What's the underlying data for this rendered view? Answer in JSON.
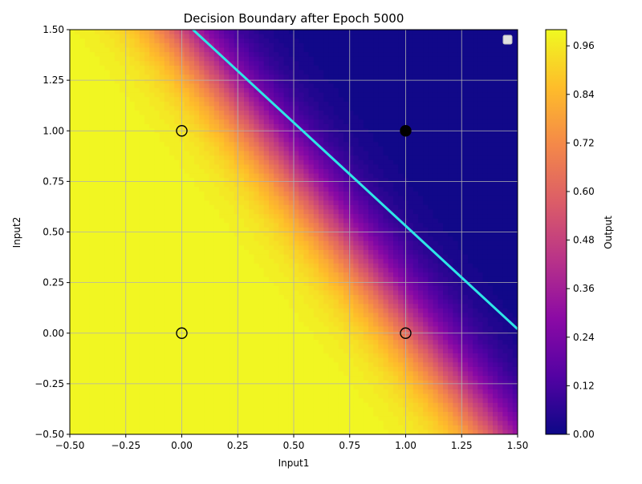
{
  "chart_data": {
    "type": "heatmap",
    "title": "Decision Boundary after Epoch 5000",
    "xlabel": "Input1",
    "ylabel": "Input2",
    "xlim": [
      -0.5,
      1.5
    ],
    "ylim": [
      -0.5,
      1.5
    ],
    "xticks": [
      -0.5,
      -0.25,
      0.0,
      0.25,
      0.5,
      0.75,
      1.0,
      1.25,
      1.5
    ],
    "yticks": [
      -0.5,
      -0.25,
      0.0,
      0.25,
      0.5,
      0.75,
      1.0,
      1.25,
      1.5
    ],
    "xtick_labels": [
      "−0.50",
      "−0.25",
      "0.00",
      "0.25",
      "0.50",
      "0.75",
      "1.00",
      "1.25",
      "1.50"
    ],
    "ytick_labels": [
      "−0.50",
      "−0.25",
      "0.00",
      "0.25",
      "0.50",
      "0.75",
      "1.00",
      "1.25",
      "1.50"
    ],
    "grid": true,
    "legend_position": "top-right",
    "colormap": "plasma",
    "colormap_stops": [
      "#0d0887",
      "#5302a3",
      "#8b0aa5",
      "#b83289",
      "#db5c68",
      "#f48849",
      "#febd2a",
      "#f0f921"
    ],
    "surface": {
      "description_model": "sigmoid",
      "w1": -8.5,
      "w2": -6.0,
      "b": 9.0
    },
    "colorbar": {
      "label": "Output",
      "range": [
        0.0,
        1.0
      ],
      "ticks": [
        0.0,
        0.12,
        0.24,
        0.36,
        0.48,
        0.6,
        0.72,
        0.84,
        0.96
      ],
      "tick_labels": [
        "0.00",
        "0.12",
        "0.24",
        "0.36",
        "0.48",
        "0.60",
        "0.72",
        "0.84",
        "0.96"
      ]
    },
    "boundary_line": {
      "color": "#2ee6e6",
      "points": [
        [
          0.05,
          1.5
        ],
        [
          1.5,
          0.02
        ]
      ]
    },
    "points": [
      {
        "x": 0.0,
        "y": 0.0,
        "label": 0
      },
      {
        "x": 0.0,
        "y": 1.0,
        "label": 0
      },
      {
        "x": 1.0,
        "y": 0.0,
        "label": 0
      },
      {
        "x": 1.0,
        "y": 1.0,
        "label": 1
      }
    ]
  }
}
